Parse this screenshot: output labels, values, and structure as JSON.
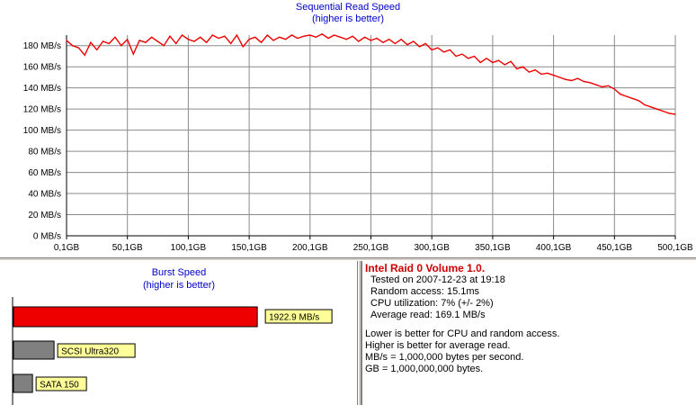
{
  "seq_chart": {
    "title": "Sequential Read Speed",
    "subtitle": "(higher is better)"
  },
  "burst_chart": {
    "title": "Burst Speed",
    "subtitle": "(higher is better)"
  },
  "info": {
    "title": "Intel Raid 0 Volume 1.0.",
    "tested_on": "Tested on 2007-12-23 at 19:18",
    "random_access": "Random access: 15.1ms",
    "cpu_utilization": "CPU utilization: 7% (+/- 2%)",
    "average_read": "Average read: 169.1 MB/s",
    "note1": "Lower is better for CPU and random access.",
    "note2": "Higher is better for average read.",
    "note3": "MB/s = 1,000,000 bytes per second.",
    "note4": "GB = 1,000,000,000 bytes."
  },
  "colors": {
    "series": "#ee0000",
    "grid": "#8a8a8a",
    "title": "#0000cc",
    "reference_bar": "#808080",
    "label_bg": "#ffff99"
  },
  "chart_data": [
    {
      "type": "line",
      "title": "Sequential Read Speed",
      "subtitle": "(higher is better)",
      "x_tick_labels": [
        "0,1GB",
        "50,1GB",
        "100,1GB",
        "150,1GB",
        "200,1GB",
        "250,1GB",
        "300,1GB",
        "350,1GB",
        "400,1GB",
        "450,1GB",
        "500,1GB"
      ],
      "y_tick_labels": [
        "0 MB/s",
        "20 MB/s",
        "40 MB/s",
        "60 MB/s",
        "80 MB/s",
        "100 MB/s",
        "120 MB/s",
        "140 MB/s",
        "160 MB/s",
        "180 MB/s"
      ],
      "xlim": [
        0.1,
        500.1
      ],
      "ylim": [
        0,
        190
      ],
      "grid": true,
      "series": [
        {
          "x": [
            0.1,
            5,
            10,
            15,
            20,
            25,
            30,
            35,
            40,
            45,
            50,
            55,
            60,
            65,
            70,
            75,
            80,
            85,
            90,
            95,
            100,
            105,
            110,
            115,
            120,
            125,
            130,
            135,
            140,
            145,
            150,
            155,
            160,
            165,
            170,
            175,
            180,
            185,
            190,
            195,
            200,
            205,
            210,
            215,
            220,
            225,
            230,
            235,
            240,
            245,
            250,
            255,
            260,
            265,
            270,
            275,
            280,
            285,
            290,
            295,
            300,
            305,
            310,
            315,
            320,
            325,
            330,
            335,
            340,
            345,
            350,
            355,
            360,
            365,
            370,
            375,
            380,
            385,
            390,
            395,
            400,
            405,
            410,
            415,
            420,
            425,
            430,
            435,
            440,
            445,
            450,
            455,
            460,
            465,
            470,
            475,
            480,
            485,
            490,
            495,
            500.1
          ],
          "y": [
            185,
            180,
            178,
            171,
            183,
            176,
            184,
            182,
            188,
            180,
            186,
            172,
            185,
            183,
            188,
            184,
            180,
            189,
            182,
            190,
            186,
            184,
            188,
            183,
            190,
            187,
            189,
            182,
            190,
            179,
            186,
            188,
            183,
            190,
            185,
            188,
            186,
            190,
            187,
            189,
            190,
            188,
            191,
            187,
            190,
            188,
            186,
            189,
            184,
            188,
            185,
            187,
            183,
            186,
            182,
            186,
            181,
            184,
            179,
            182,
            176,
            178,
            174,
            176,
            170,
            172,
            168,
            170,
            164,
            168,
            164,
            166,
            162,
            165,
            158,
            160,
            155,
            157,
            153,
            154,
            152,
            150,
            148,
            147,
            149,
            146,
            145,
            143,
            141,
            142,
            139,
            134,
            132,
            130,
            128,
            124,
            122,
            120,
            118,
            116,
            115
          ]
        }
      ]
    },
    {
      "type": "bar",
      "title": "Burst Speed",
      "subtitle": "(higher is better)",
      "categories": [
        "",
        "SCSI Ultra320",
        "SATA 150"
      ],
      "labels": [
        "1922.9 MB/s",
        "SCSI Ultra320",
        "SATA 150"
      ],
      "values": [
        1922.9,
        320,
        150
      ],
      "xlim": [
        0,
        2000
      ]
    }
  ]
}
